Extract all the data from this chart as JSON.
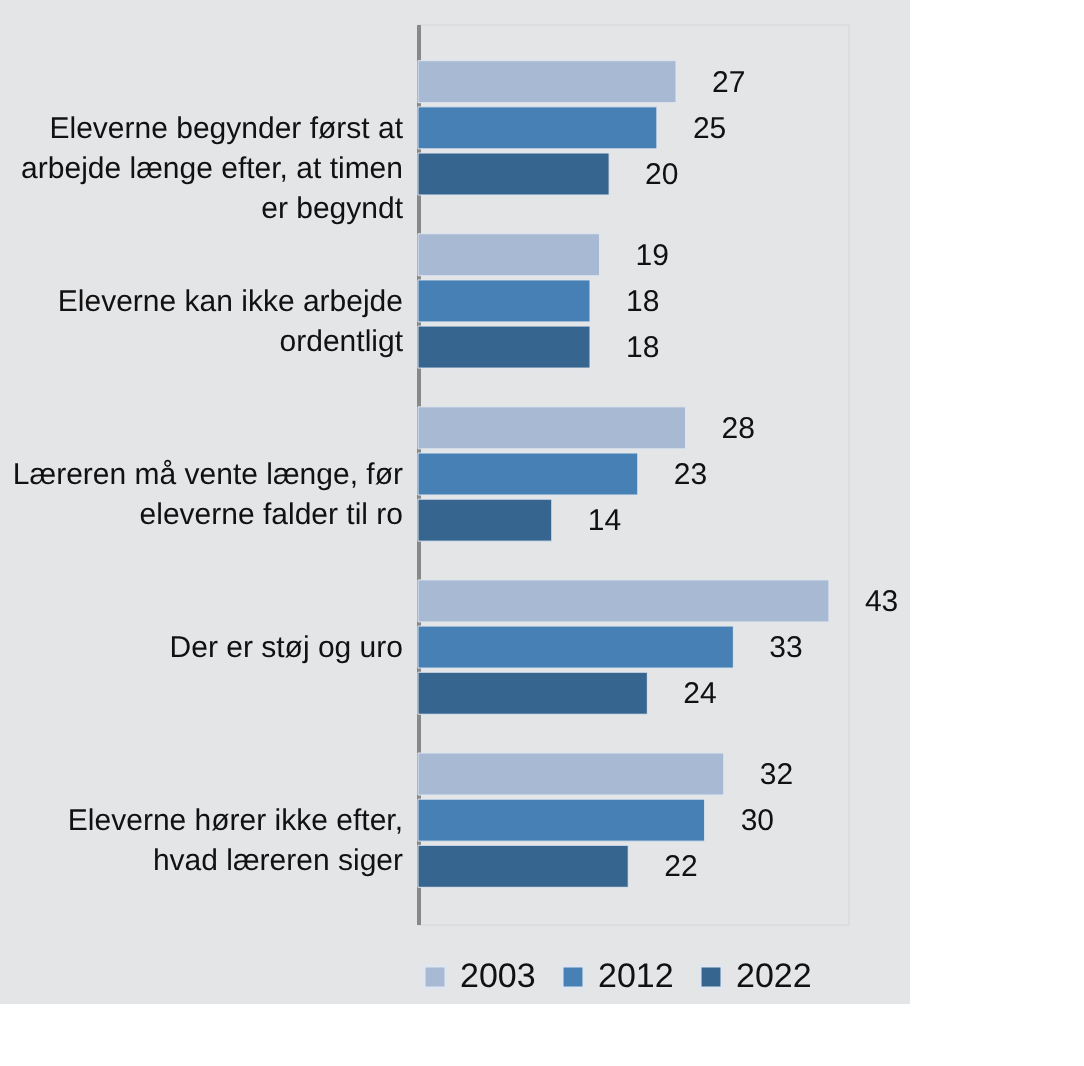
{
  "chart_data": {
    "type": "bar",
    "orientation": "horizontal",
    "categories": [
      "Eleverne begynder først at arbejde længe efter, at timen er begyndt",
      "Eleverne kan ikke arbejde ordentligt",
      "Læreren må vente længe, før eleverne falder til ro",
      "Der er støj og uro",
      "Eleverne hører ikke efter, hvad læreren siger"
    ],
    "series": [
      {
        "name": "2003",
        "color": "#a8bad3",
        "values": [
          27,
          19,
          28,
          43,
          32
        ]
      },
      {
        "name": "2012",
        "color": "#4680b4",
        "values": [
          25,
          18,
          23,
          33,
          30
        ]
      },
      {
        "name": "2022",
        "color": "#36658f",
        "values": [
          20,
          18,
          14,
          24,
          22
        ]
      }
    ],
    "data_labels": true,
    "legend": "bottom",
    "grid": false
  }
}
